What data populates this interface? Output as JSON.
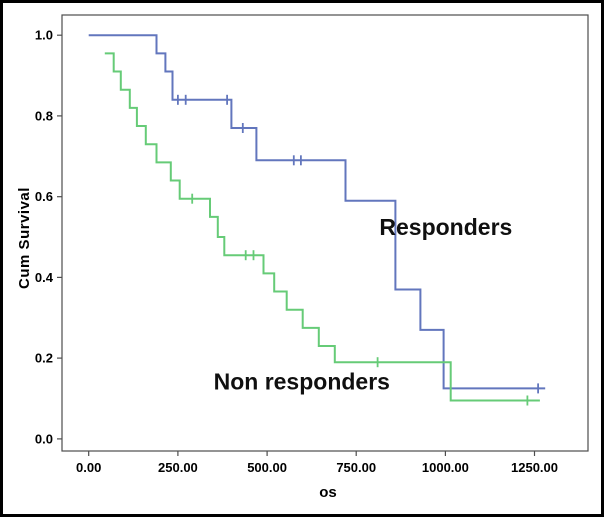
{
  "chart_data": {
    "type": "line",
    "subtype": "kaplan-meier-step-survival",
    "title": "",
    "xlabel": "os",
    "ylabel": "Cum Survival",
    "xlim": [
      -75,
      1400
    ],
    "ylim": [
      -0.03,
      1.05
    ],
    "grid": false,
    "legend_position": "inline-annotations",
    "xticks": {
      "values": [
        0,
        250,
        500,
        750,
        1000,
        1250
      ],
      "labels": [
        "0.00",
        "250.00",
        "500.00",
        "750.00",
        "1000.00",
        "1250.00"
      ]
    },
    "yticks": {
      "values": [
        0.0,
        0.2,
        0.4,
        0.6,
        0.8,
        1.0
      ],
      "labels": [
        "0.0",
        "0.2",
        "0.4",
        "0.6",
        "0.8",
        "1.0"
      ]
    },
    "series": [
      {
        "name": "Responders",
        "id": "responders",
        "color": "#6276bd",
        "steps": [
          [
            0,
            1.0
          ],
          [
            190,
            0.955
          ],
          [
            215,
            0.91
          ],
          [
            235,
            0.84
          ],
          [
            400,
            0.77
          ],
          [
            470,
            0.69
          ],
          [
            720,
            0.59
          ],
          [
            860,
            0.37
          ],
          [
            930,
            0.27
          ],
          [
            995,
            0.125
          ]
        ],
        "end_x": 1280,
        "censors": [
          [
            250,
            0.84
          ],
          [
            272,
            0.84
          ],
          [
            388,
            0.84
          ],
          [
            432,
            0.77
          ],
          [
            575,
            0.69
          ],
          [
            595,
            0.69
          ],
          [
            1260,
            0.125
          ]
        ]
      },
      {
        "name": "Non responders",
        "id": "non-responders",
        "color": "#66cb77",
        "steps": [
          [
            45,
            0.955
          ],
          [
            70,
            0.91
          ],
          [
            90,
            0.865
          ],
          [
            115,
            0.82
          ],
          [
            135,
            0.775
          ],
          [
            160,
            0.73
          ],
          [
            190,
            0.685
          ],
          [
            230,
            0.64
          ],
          [
            255,
            0.595
          ],
          [
            340,
            0.55
          ],
          [
            362,
            0.5
          ],
          [
            380,
            0.455
          ],
          [
            490,
            0.41
          ],
          [
            520,
            0.365
          ],
          [
            555,
            0.32
          ],
          [
            600,
            0.275
          ],
          [
            645,
            0.23
          ],
          [
            690,
            0.19
          ],
          [
            1015,
            0.095
          ]
        ],
        "end_x": 1265,
        "censors": [
          [
            290,
            0.595
          ],
          [
            440,
            0.455
          ],
          [
            462,
            0.455
          ],
          [
            810,
            0.19
          ],
          [
            1230,
            0.095
          ]
        ]
      }
    ],
    "annotations": [
      {
        "text": "Responders",
        "x": 815,
        "y": 0.505,
        "anchor": "start"
      },
      {
        "text": "Non responders",
        "x": 350,
        "y": 0.122,
        "anchor": "start"
      }
    ]
  }
}
